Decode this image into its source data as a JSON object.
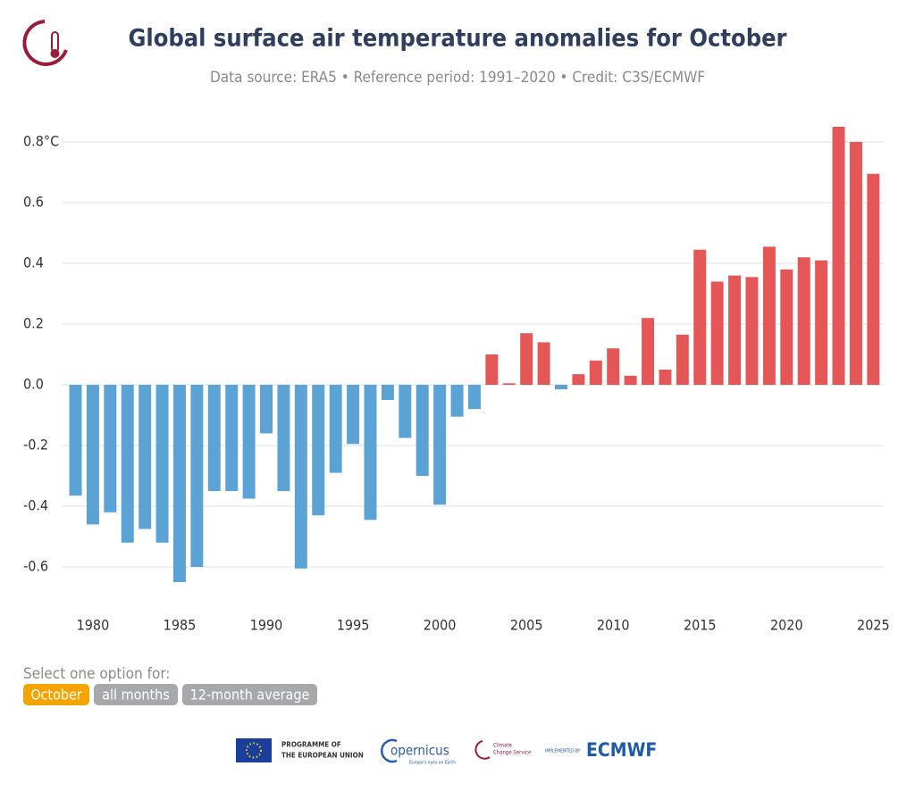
{
  "chart_data": {
    "type": "bar",
    "title": "Global surface air temperature anomalies for October",
    "subtitle": "Data source: ERA5 • Reference period: 1991–2020 • Credit: C3S/ECMWF",
    "x": [
      1979,
      1980,
      1981,
      1982,
      1983,
      1984,
      1985,
      1986,
      1987,
      1988,
      1989,
      1990,
      1991,
      1992,
      1993,
      1994,
      1995,
      1996,
      1997,
      1998,
      1999,
      2000,
      2001,
      2002,
      2003,
      2004,
      2005,
      2006,
      2007,
      2008,
      2009,
      2010,
      2011,
      2012,
      2013,
      2014,
      2015,
      2016,
      2017,
      2018,
      2019,
      2020,
      2021,
      2022,
      2023,
      2024,
      2025
    ],
    "values": [
      -0.365,
      -0.46,
      -0.42,
      -0.52,
      -0.475,
      -0.52,
      -0.65,
      -0.6,
      -0.35,
      -0.35,
      -0.375,
      -0.16,
      -0.35,
      -0.605,
      -0.43,
      -0.29,
      -0.195,
      -0.445,
      -0.05,
      -0.175,
      -0.3,
      -0.395,
      -0.105,
      -0.08,
      0.1,
      0.005,
      0.17,
      0.14,
      -0.015,
      0.035,
      0.08,
      0.12,
      0.03,
      0.22,
      0.05,
      0.165,
      0.445,
      0.34,
      0.36,
      0.355,
      0.455,
      0.38,
      0.42,
      0.41,
      0.85,
      0.8,
      0.695
    ],
    "positive_color": "#e45756",
    "negative_color": "#5ba2d5",
    "xlim": [
      1978.2,
      2025.6
    ],
    "xticks": [
      1980,
      1985,
      1990,
      1995,
      2000,
      2005,
      2010,
      2015,
      2020,
      2025
    ],
    "ylim": [
      -0.75,
      0.9
    ],
    "yticks": [
      -0.6,
      -0.4,
      -0.2,
      {
        "value": 0,
        "label": "0.0"
      },
      0.2,
      0.4,
      0.6,
      {
        "value": 0.8,
        "label": "0.8°C"
      }
    ],
    "grid": true
  },
  "controls": {
    "prompt": "Select one option for:",
    "options": [
      "October",
      "all months",
      "12-month average"
    ],
    "selected": 0
  },
  "footer": {
    "eu": [
      "PROGRAMME OF",
      "THE EUROPEAN UNION"
    ],
    "copernicus": "opernicus",
    "copernicus_tagline": "Europe's eyes on Earth",
    "c3s": [
      "Climate",
      "Change Service"
    ],
    "implemented": "IMPLEMENTED BY",
    "ecmwf": "ECMWF"
  }
}
